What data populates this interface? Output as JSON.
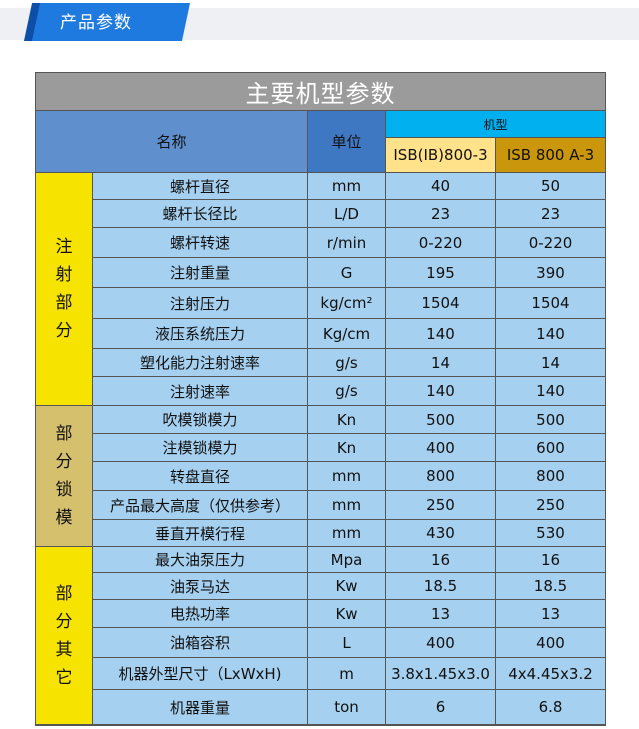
{
  "header": {
    "title": "产品参数"
  },
  "table": {
    "title": "主要机型参数",
    "col_name": "名称",
    "col_unit": "单位",
    "col_model_group": "机型",
    "models": [
      "ISB(IB)800-3",
      "ISB 800 A-3"
    ],
    "sections": [
      {
        "label": [
          "注",
          "射",
          "部",
          "分"
        ]
      },
      {
        "label": [
          "部",
          "分",
          "锁",
          "模"
        ]
      },
      {
        "label": [
          "部",
          "分",
          "其",
          "它"
        ]
      }
    ],
    "rows": [
      {
        "name": "螺杆直径",
        "unit": "mm",
        "v1": "40",
        "v2": "50"
      },
      {
        "name": "螺杆长径比",
        "unit": "L/D",
        "v1": "23",
        "v2": "23"
      },
      {
        "name": "螺杆转速",
        "unit": "r/min",
        "v1": "0-220",
        "v2": "0-220"
      },
      {
        "name": "注射重量",
        "unit": "G",
        "v1": "195",
        "v2": "390"
      },
      {
        "name": "注射压力",
        "unit": "kg/cm²",
        "v1": "1504",
        "v2": "1504"
      },
      {
        "name": "液压系统压力",
        "unit": "Kg/cm",
        "v1": "140",
        "v2": "140"
      },
      {
        "name": "塑化能力注射速率",
        "unit": "g/s",
        "v1": "14",
        "v2": "14"
      },
      {
        "name": "注射速率",
        "unit": "g/s",
        "v1": "140",
        "v2": "140"
      },
      {
        "name": "吹模锁模力",
        "unit": "Kn",
        "v1": "500",
        "v2": "500"
      },
      {
        "name": "注模锁模力",
        "unit": "Kn",
        "v1": "400",
        "v2": "600"
      },
      {
        "name": "转盘直径",
        "unit": "mm",
        "v1": "800",
        "v2": "800"
      },
      {
        "name": "产品最大高度（仅供参考）",
        "unit": "mm",
        "v1": "250",
        "v2": "250"
      },
      {
        "name": "垂直开模行程",
        "unit": "mm",
        "v1": "430",
        "v2": "530"
      },
      {
        "name": "最大油泵压力",
        "unit": "Mpa",
        "v1": "16",
        "v2": "16"
      },
      {
        "name": "油泵马达",
        "unit": "Kw",
        "v1": "18.5",
        "v2": "18.5"
      },
      {
        "name": "电热功率",
        "unit": "Kw",
        "v1": "13",
        "v2": "13"
      },
      {
        "name": "油箱容积",
        "unit": "L",
        "v1": "400",
        "v2": "400"
      },
      {
        "name": "机器外型尺寸（LxWxH)",
        "unit": "m",
        "v1": "3.8x1.45x3.0",
        "v2": "4x4.45x3.2"
      },
      {
        "name": "机器重量",
        "unit": "ton",
        "v1": "6",
        "v2": "6.8"
      }
    ]
  }
}
